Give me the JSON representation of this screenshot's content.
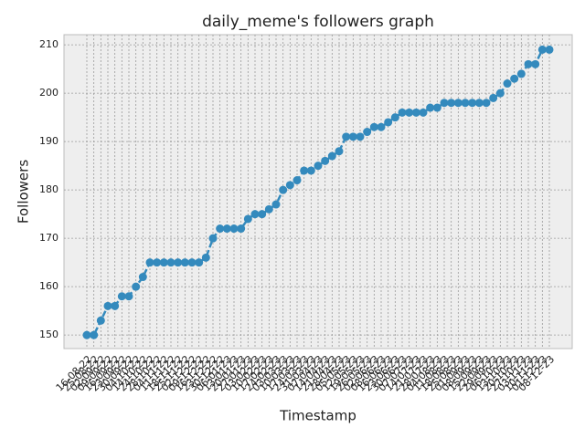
{
  "chart_data": {
    "type": "line",
    "title": "daily_meme's followers graph",
    "x_label": "Timestamp",
    "y_label": "Followers",
    "categories": [
      "16-08-22",
      "25-08-22",
      "02-09-22",
      "09-09-22",
      "16-09-22",
      "23-09-22",
      "30-09-22",
      "04-10-22",
      "14-10-22",
      "24-10-22",
      "28-10-22",
      "04-11-22",
      "11-11-22",
      "18-11-22",
      "25-11-22",
      "02-12-22",
      "09-12-22",
      "16-12-22",
      "23-12-22",
      "30-12-22",
      "06-01-23",
      "13-01-23",
      "20-01-23",
      "27-01-23",
      "03-02-23",
      "10-02-23",
      "17-02-23",
      "24-02-23",
      "03-03-23",
      "10-03-23",
      "17-03-23",
      "24-03-23",
      "31-03-23",
      "07-04-23",
      "14-04-23",
      "21-04-23",
      "28-04-23",
      "05-05-23",
      "12-05-23",
      "19-05-23",
      "26-05-23",
      "02-06-23",
      "08-06-23",
      "16-06-23",
      "23-06-23",
      "30-06-23",
      "07-07-23",
      "14-07-23",
      "21-07-23",
      "28-07-23",
      "04-08-23",
      "11-08-23",
      "18-08-23",
      "25-08-23",
      "01-09-23",
      "08-09-23",
      "15-09-23",
      "22-09-23",
      "29-09-23",
      "06-10-23",
      "13-10-23",
      "20-10-23",
      "27-10-23",
      "03-11-23",
      "10-11-23",
      "01-12-23",
      "08-12-23"
    ],
    "series": [
      {
        "name": "Followers",
        "color": "#348ABD",
        "values": [
          150,
          150,
          153,
          156,
          156,
          158,
          158,
          160,
          162,
          165,
          165,
          165,
          165,
          165,
          165,
          165,
          165,
          166,
          170,
          172,
          172,
          172,
          172,
          174,
          175,
          175,
          176,
          177,
          180,
          181,
          182,
          184,
          184,
          185,
          186,
          187,
          188,
          191,
          191,
          191,
          192,
          193,
          193,
          194,
          195,
          196,
          196,
          196,
          196,
          197,
          197,
          198,
          198,
          198,
          198,
          198,
          198,
          198,
          199,
          200,
          202,
          203,
          204,
          206,
          206,
          209,
          209
        ]
      }
    ],
    "ylim": [
      147.2,
      212.1
    ],
    "yticks": [
      150,
      160,
      170,
      180,
      190,
      200,
      210
    ],
    "grid": true
  }
}
